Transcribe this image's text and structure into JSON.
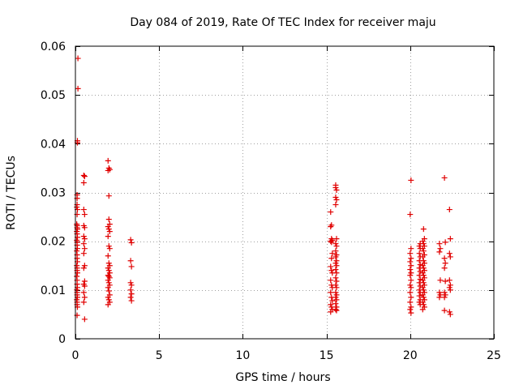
{
  "chart_data": {
    "type": "scatter",
    "title": "Day 084 of 2019, Rate Of TEC Index for receiver maju",
    "xlabel": "GPS time / hours",
    "ylabel": "ROTI / TECUs",
    "xlim": [
      0,
      25
    ],
    "ylim": [
      0,
      0.06
    ],
    "x_ticks": [
      0,
      5,
      10,
      15,
      20,
      25
    ],
    "x_tick_labels": [
      "0",
      "5",
      "10",
      "15",
      "20",
      "25"
    ],
    "y_ticks": [
      0,
      0.01,
      0.02,
      0.03,
      0.04,
      0.05,
      0.06
    ],
    "y_tick_labels": [
      "0",
      "0.01",
      "0.02",
      "0.03",
      "0.04",
      "0.05",
      "0.06"
    ],
    "grid": true,
    "marker": "+",
    "marker_color": "#e00000",
    "series": [
      {
        "name": "ROTI",
        "points": [
          [
            0.15,
            0.0575
          ],
          [
            0.15,
            0.0513
          ],
          [
            0.12,
            0.0406
          ],
          [
            0.12,
            0.0402
          ],
          [
            0.1,
            0.0295
          ],
          [
            0.1,
            0.0288
          ],
          [
            0.1,
            0.0275
          ],
          [
            0.08,
            0.027
          ],
          [
            0.12,
            0.0265
          ],
          [
            0.1,
            0.0255
          ],
          [
            0.08,
            0.0235
          ],
          [
            0.1,
            0.0232
          ],
          [
            0.1,
            0.0228
          ],
          [
            0.12,
            0.0225
          ],
          [
            0.08,
            0.022
          ],
          [
            0.1,
            0.0215
          ],
          [
            0.12,
            0.0208
          ],
          [
            0.08,
            0.0202
          ],
          [
            0.1,
            0.0198
          ],
          [
            0.1,
            0.0192
          ],
          [
            0.12,
            0.0185
          ],
          [
            0.08,
            0.018
          ],
          [
            0.1,
            0.0172
          ],
          [
            0.1,
            0.0165
          ],
          [
            0.12,
            0.0158
          ],
          [
            0.08,
            0.015
          ],
          [
            0.1,
            0.0145
          ],
          [
            0.1,
            0.014
          ],
          [
            0.12,
            0.0135
          ],
          [
            0.08,
            0.0128
          ],
          [
            0.1,
            0.012
          ],
          [
            0.1,
            0.0112
          ],
          [
            0.12,
            0.0105
          ],
          [
            0.08,
            0.01
          ],
          [
            0.1,
            0.0095
          ],
          [
            0.1,
            0.009
          ],
          [
            0.12,
            0.0085
          ],
          [
            0.08,
            0.008
          ],
          [
            0.1,
            0.0075
          ],
          [
            0.1,
            0.007
          ],
          [
            0.12,
            0.0065
          ],
          [
            0.1,
            0.0048
          ],
          [
            0.5,
            0.0335
          ],
          [
            0.55,
            0.0333
          ],
          [
            0.5,
            0.032
          ],
          [
            0.5,
            0.0265
          ],
          [
            0.55,
            0.0255
          ],
          [
            0.5,
            0.0232
          ],
          [
            0.55,
            0.0228
          ],
          [
            0.5,
            0.021
          ],
          [
            0.55,
            0.0205
          ],
          [
            0.5,
            0.0195
          ],
          [
            0.55,
            0.0185
          ],
          [
            0.5,
            0.0175
          ],
          [
            0.55,
            0.015
          ],
          [
            0.5,
            0.0145
          ],
          [
            0.55,
            0.0118
          ],
          [
            0.5,
            0.0112
          ],
          [
            0.55,
            0.0108
          ],
          [
            0.5,
            0.0095
          ],
          [
            0.55,
            0.0085
          ],
          [
            0.5,
            0.0075
          ],
          [
            0.55,
            0.004
          ],
          [
            1.95,
            0.0365
          ],
          [
            2.0,
            0.035
          ],
          [
            2.05,
            0.0347
          ],
          [
            1.95,
            0.0345
          ],
          [
            2.0,
            0.0293
          ],
          [
            2.0,
            0.0245
          ],
          [
            2.05,
            0.0235
          ],
          [
            1.95,
            0.023
          ],
          [
            2.0,
            0.0225
          ],
          [
            2.05,
            0.022
          ],
          [
            1.95,
            0.021
          ],
          [
            2.0,
            0.019
          ],
          [
            2.05,
            0.0185
          ],
          [
            1.95,
            0.017
          ],
          [
            2.0,
            0.0155
          ],
          [
            2.05,
            0.015
          ],
          [
            1.95,
            0.0145
          ],
          [
            2.0,
            0.014
          ],
          [
            2.05,
            0.0135
          ],
          [
            1.95,
            0.013
          ],
          [
            2.0,
            0.0128
          ],
          [
            2.05,
            0.0125
          ],
          [
            1.95,
            0.012
          ],
          [
            2.0,
            0.0115
          ],
          [
            2.05,
            0.011
          ],
          [
            1.95,
            0.0105
          ],
          [
            2.0,
            0.0098
          ],
          [
            2.05,
            0.009
          ],
          [
            1.95,
            0.0085
          ],
          [
            2.0,
            0.008
          ],
          [
            2.05,
            0.0075
          ],
          [
            1.95,
            0.007
          ],
          [
            3.3,
            0.0203
          ],
          [
            3.35,
            0.0197
          ],
          [
            3.3,
            0.016
          ],
          [
            3.35,
            0.0148
          ],
          [
            3.3,
            0.0115
          ],
          [
            3.35,
            0.011
          ],
          [
            3.3,
            0.01
          ],
          [
            3.35,
            0.0092
          ],
          [
            3.3,
            0.0085
          ],
          [
            3.35,
            0.0078
          ],
          [
            15.25,
            0.026
          ],
          [
            15.3,
            0.0233
          ],
          [
            15.25,
            0.023
          ],
          [
            15.3,
            0.0205
          ],
          [
            15.35,
            0.0202
          ],
          [
            15.25,
            0.02
          ],
          [
            15.3,
            0.0198
          ],
          [
            15.35,
            0.0175
          ],
          [
            15.3,
            0.0165
          ],
          [
            15.25,
            0.0148
          ],
          [
            15.3,
            0.014
          ],
          [
            15.35,
            0.0135
          ],
          [
            15.25,
            0.012
          ],
          [
            15.3,
            0.011
          ],
          [
            15.35,
            0.0105
          ],
          [
            15.25,
            0.0095
          ],
          [
            15.3,
            0.0085
          ],
          [
            15.35,
            0.0078
          ],
          [
            15.25,
            0.007
          ],
          [
            15.3,
            0.0065
          ],
          [
            15.35,
            0.006
          ],
          [
            15.25,
            0.0055
          ],
          [
            15.55,
            0.0315
          ],
          [
            15.55,
            0.031
          ],
          [
            15.6,
            0.0305
          ],
          [
            15.55,
            0.029
          ],
          [
            15.6,
            0.0285
          ],
          [
            15.55,
            0.0275
          ],
          [
            15.6,
            0.0205
          ],
          [
            15.55,
            0.0195
          ],
          [
            15.6,
            0.019
          ],
          [
            15.55,
            0.018
          ],
          [
            15.6,
            0.0172
          ],
          [
            15.55,
            0.0168
          ],
          [
            15.6,
            0.016
          ],
          [
            15.55,
            0.0155
          ],
          [
            15.6,
            0.015
          ],
          [
            15.55,
            0.0142
          ],
          [
            15.6,
            0.0135
          ],
          [
            15.55,
            0.0125
          ],
          [
            15.6,
            0.0118
          ],
          [
            15.55,
            0.011
          ],
          [
            15.6,
            0.0105
          ],
          [
            15.55,
            0.0095
          ],
          [
            15.6,
            0.009
          ],
          [
            15.55,
            0.0085
          ],
          [
            15.6,
            0.008
          ],
          [
            15.55,
            0.0072
          ],
          [
            15.6,
            0.0065
          ],
          [
            15.55,
            0.006
          ],
          [
            15.6,
            0.0058
          ],
          [
            20.05,
            0.0325
          ],
          [
            20.0,
            0.0255
          ],
          [
            20.05,
            0.0185
          ],
          [
            20.0,
            0.0175
          ],
          [
            20.05,
            0.0165
          ],
          [
            20.0,
            0.0158
          ],
          [
            20.05,
            0.015
          ],
          [
            20.0,
            0.0142
          ],
          [
            20.05,
            0.0135
          ],
          [
            20.0,
            0.013
          ],
          [
            20.05,
            0.012
          ],
          [
            20.0,
            0.011
          ],
          [
            20.05,
            0.0105
          ],
          [
            20.0,
            0.0095
          ],
          [
            20.05,
            0.0085
          ],
          [
            20.0,
            0.0075
          ],
          [
            20.05,
            0.0065
          ],
          [
            20.0,
            0.006
          ],
          [
            20.05,
            0.0053
          ],
          [
            20.6,
            0.0195
          ],
          [
            20.55,
            0.019
          ],
          [
            20.6,
            0.0185
          ],
          [
            20.55,
            0.0175
          ],
          [
            20.6,
            0.0168
          ],
          [
            20.55,
            0.016
          ],
          [
            20.6,
            0.0152
          ],
          [
            20.55,
            0.0145
          ],
          [
            20.6,
            0.0138
          ],
          [
            20.55,
            0.013
          ],
          [
            20.6,
            0.0122
          ],
          [
            20.55,
            0.0115
          ],
          [
            20.6,
            0.0108
          ],
          [
            20.55,
            0.01
          ],
          [
            20.6,
            0.0095
          ],
          [
            20.55,
            0.0088
          ],
          [
            20.6,
            0.008
          ],
          [
            20.55,
            0.0075
          ],
          [
            20.6,
            0.007
          ],
          [
            20.8,
            0.0225
          ],
          [
            20.85,
            0.0205
          ],
          [
            20.75,
            0.02
          ],
          [
            20.8,
            0.0195
          ],
          [
            20.85,
            0.019
          ],
          [
            20.75,
            0.0185
          ],
          [
            20.8,
            0.018
          ],
          [
            20.85,
            0.0172
          ],
          [
            20.75,
            0.0168
          ],
          [
            20.8,
            0.016
          ],
          [
            20.85,
            0.0155
          ],
          [
            20.75,
            0.015
          ],
          [
            20.8,
            0.0145
          ],
          [
            20.85,
            0.014
          ],
          [
            20.75,
            0.0135
          ],
          [
            20.8,
            0.013
          ],
          [
            20.85,
            0.0125
          ],
          [
            20.75,
            0.012
          ],
          [
            20.8,
            0.0115
          ],
          [
            20.85,
            0.011
          ],
          [
            20.75,
            0.0105
          ],
          [
            20.8,
            0.01
          ],
          [
            20.85,
            0.0095
          ],
          [
            20.75,
            0.009
          ],
          [
            20.8,
            0.0085
          ],
          [
            20.85,
            0.008
          ],
          [
            20.75,
            0.0075
          ],
          [
            20.8,
            0.007
          ],
          [
            20.85,
            0.0065
          ],
          [
            20.75,
            0.006
          ],
          [
            21.75,
            0.0195
          ],
          [
            21.8,
            0.0185
          ],
          [
            21.75,
            0.0178
          ],
          [
            21.8,
            0.012
          ],
          [
            21.75,
            0.0095
          ],
          [
            21.8,
            0.009
          ],
          [
            21.75,
            0.0085
          ],
          [
            22.05,
            0.033
          ],
          [
            22.1,
            0.0198
          ],
          [
            22.05,
            0.0165
          ],
          [
            22.1,
            0.0155
          ],
          [
            22.05,
            0.0145
          ],
          [
            22.1,
            0.0118
          ],
          [
            22.05,
            0.0095
          ],
          [
            22.1,
            0.009
          ],
          [
            22.05,
            0.0085
          ],
          [
            22.05,
            0.0058
          ],
          [
            22.35,
            0.0265
          ],
          [
            22.4,
            0.0205
          ],
          [
            22.35,
            0.0175
          ],
          [
            22.4,
            0.0168
          ],
          [
            22.35,
            0.012
          ],
          [
            22.4,
            0.011
          ],
          [
            22.35,
            0.0105
          ],
          [
            22.4,
            0.01
          ],
          [
            22.35,
            0.0055
          ],
          [
            22.4,
            0.005
          ]
        ]
      }
    ]
  }
}
